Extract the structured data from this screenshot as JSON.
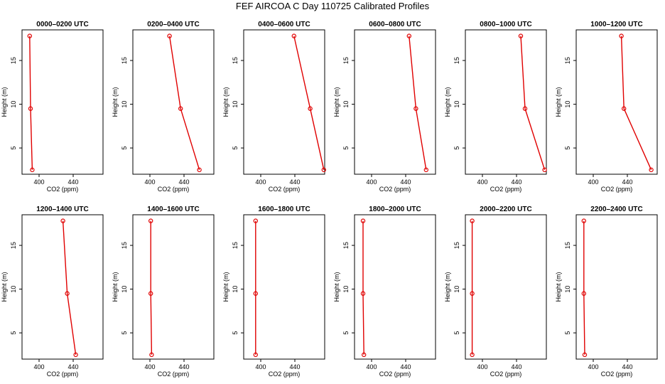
{
  "title": "FEF AIRCOA C  Day 110725  Calibrated Profiles",
  "colors": {
    "line": "#e00000",
    "axis": "#000000",
    "background": "#ffffff"
  },
  "chart_data": [
    {
      "type": "line",
      "title": "0000–0200 UTC",
      "xlabel": "CO2 (ppm)",
      "ylabel": "Height (m)",
      "xlim": [
        380,
        475
      ],
      "ylim": [
        2,
        18.5
      ],
      "xticks": [
        400,
        440
      ],
      "yticks": [
        5,
        10,
        15
      ],
      "grid": false,
      "heights": [
        2.5,
        9.5,
        17.8
      ],
      "values": [
        392,
        390,
        389
      ]
    },
    {
      "type": "line",
      "title": "0200–0400 UTC",
      "xlabel": "CO2 (ppm)",
      "ylabel": "Height (m)",
      "xlim": [
        380,
        475
      ],
      "ylim": [
        2,
        18.5
      ],
      "xticks": [
        400,
        440
      ],
      "yticks": [
        5,
        10,
        15
      ],
      "grid": false,
      "heights": [
        2.5,
        9.5,
        17.8
      ],
      "values": [
        458,
        436,
        423
      ]
    },
    {
      "type": "line",
      "title": "0400–0600 UTC",
      "xlabel": "CO2 (ppm)",
      "ylabel": "Height (m)",
      "xlim": [
        380,
        475
      ],
      "ylim": [
        2,
        18.5
      ],
      "xticks": [
        400,
        440
      ],
      "yticks": [
        5,
        10,
        15
      ],
      "grid": false,
      "heights": [
        2.5,
        9.5,
        17.8
      ],
      "values": [
        474,
        458,
        439
      ]
    },
    {
      "type": "line",
      "title": "0600–0800 UTC",
      "xlabel": "CO2 (ppm)",
      "ylabel": "Height (m)",
      "xlim": [
        380,
        475
      ],
      "ylim": [
        2,
        18.5
      ],
      "xticks": [
        400,
        440
      ],
      "yticks": [
        5,
        10,
        15
      ],
      "grid": false,
      "heights": [
        2.5,
        9.5,
        17.8
      ],
      "values": [
        464,
        452,
        444
      ]
    },
    {
      "type": "line",
      "title": "0800–1000 UTC",
      "xlabel": "CO2 (ppm)",
      "ylabel": "Height (m)",
      "xlim": [
        380,
        475
      ],
      "ylim": [
        2,
        18.5
      ],
      "xticks": [
        400,
        440
      ],
      "yticks": [
        5,
        10,
        15
      ],
      "grid": false,
      "heights": [
        2.5,
        9.5,
        17.8
      ],
      "values": [
        473,
        450,
        445
      ]
    },
    {
      "type": "line",
      "title": "1000–1200 UTC",
      "xlabel": "CO2 (ppm)",
      "ylabel": "Height (m)",
      "xlim": [
        380,
        475
      ],
      "ylim": [
        2,
        18.5
      ],
      "xticks": [
        400,
        440
      ],
      "yticks": [
        5,
        10,
        15
      ],
      "grid": false,
      "heights": [
        2.5,
        9.5,
        17.8
      ],
      "values": [
        468,
        436,
        433
      ]
    },
    {
      "type": "line",
      "title": "1200–1400 UTC",
      "xlabel": "CO2 (ppm)",
      "ylabel": "Height (m)",
      "xlim": [
        380,
        475
      ],
      "ylim": [
        2,
        18.5
      ],
      "xticks": [
        400,
        440
      ],
      "yticks": [
        5,
        10,
        15
      ],
      "grid": false,
      "heights": [
        2.5,
        9.5,
        17.8
      ],
      "values": [
        443,
        433,
        428
      ]
    },
    {
      "type": "line",
      "title": "1400–1600 UTC",
      "xlabel": "CO2 (ppm)",
      "ylabel": "Height (m)",
      "xlim": [
        380,
        475
      ],
      "ylim": [
        2,
        18.5
      ],
      "xticks": [
        400,
        440
      ],
      "yticks": [
        5,
        10,
        15
      ],
      "grid": false,
      "heights": [
        2.5,
        9.5,
        17.8
      ],
      "values": [
        402,
        401,
        401
      ]
    },
    {
      "type": "line",
      "title": "1600–1800 UTC",
      "xlabel": "CO2 (ppm)",
      "ylabel": "Height (m)",
      "xlim": [
        380,
        475
      ],
      "ylim": [
        2,
        18.5
      ],
      "xticks": [
        400,
        440
      ],
      "yticks": [
        5,
        10,
        15
      ],
      "grid": false,
      "heights": [
        2.5,
        9.5,
        17.8
      ],
      "values": [
        394,
        394,
        394
      ]
    },
    {
      "type": "line",
      "title": "1800–2000 UTC",
      "xlabel": "CO2 (ppm)",
      "ylabel": "Height (m)",
      "xlim": [
        380,
        475
      ],
      "ylim": [
        2,
        18.5
      ],
      "xticks": [
        400,
        440
      ],
      "yticks": [
        5,
        10,
        15
      ],
      "grid": false,
      "heights": [
        2.5,
        9.5,
        17.8
      ],
      "values": [
        391,
        390,
        390
      ]
    },
    {
      "type": "line",
      "title": "2000–2200 UTC",
      "xlabel": "CO2 (ppm)",
      "ylabel": "Height (m)",
      "xlim": [
        380,
        475
      ],
      "ylim": [
        2,
        18.5
      ],
      "xticks": [
        400,
        440
      ],
      "yticks": [
        5,
        10,
        15
      ],
      "grid": false,
      "heights": [
        2.5,
        9.5,
        17.8
      ],
      "values": [
        388,
        388,
        388
      ]
    },
    {
      "type": "line",
      "title": "2200–2400 UTC",
      "xlabel": "CO2 (ppm)",
      "ylabel": "Height (m)",
      "xlim": [
        380,
        475
      ],
      "ylim": [
        2,
        18.5
      ],
      "xticks": [
        400,
        440
      ],
      "yticks": [
        5,
        10,
        15
      ],
      "grid": false,
      "heights": [
        2.5,
        9.5,
        17.8
      ],
      "values": [
        390,
        389,
        389
      ]
    }
  ]
}
